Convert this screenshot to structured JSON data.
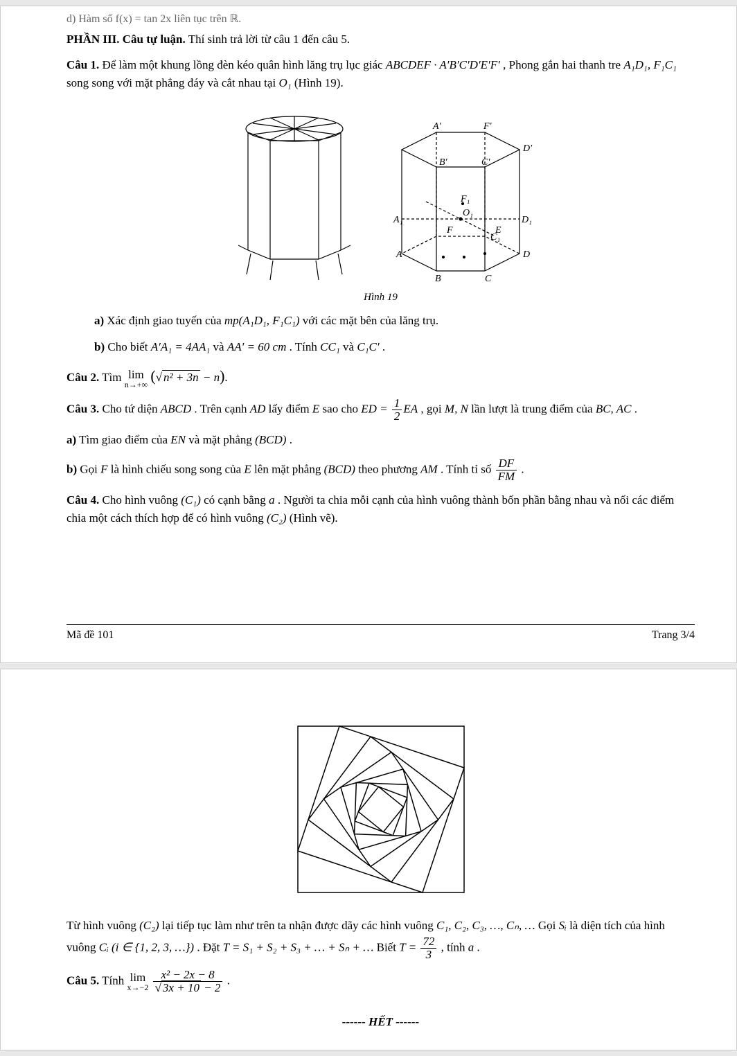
{
  "topCut": "d) Hàm số f(x) = tan 2x liên tục trên ℝ.",
  "sectionHead": {
    "bold": "PHẦN III. Câu tự luận.",
    "rest": " Thí sinh trả lời từ câu 1 đến câu 5."
  },
  "cau1": {
    "label": "Câu 1.",
    "text1": " Để làm một khung lồng đèn kéo quân hình lăng trụ lục giác ",
    "math1": "ABCDEF · A′B′C′D′E′F′",
    "text2": " , Phong gắn hai thanh tre ",
    "math2": "A₁D₁, F₁C₁",
    "text3": " song song với mặt phẳng đáy và cắt nhau tại ",
    "math3": "O₁",
    "text4": " (Hình 19).",
    "figCaption": "Hình 19",
    "a": {
      "label": "a)",
      "text1": " Xác định giao tuyến của ",
      "math1": "mp(A₁D₁, F₁C₁)",
      "text2": " với các mặt bên của lăng trụ."
    },
    "b": {
      "label": "b)",
      "text1": " Cho biết ",
      "math1": "A′A₁ = 4AA₁",
      "text2": " và ",
      "math2": "AA′ = 60 cm",
      "text3": " . Tính ",
      "math3": "CC₁",
      "text4": " và ",
      "math4": "C₁C′",
      "text5": " ."
    }
  },
  "cau2": {
    "label": "Câu 2.",
    "text1": " Tìm ",
    "limTop": "lim",
    "limBot": "n→+∞",
    "sqrtInner": "n² + 3n",
    "after": " − n",
    "close": "."
  },
  "cau3": {
    "label": "Câu 3.",
    "text1": " Cho tứ diện ",
    "math1": "ABCD",
    "text2": " . Trên cạnh ",
    "math2": "AD",
    "text3": " lấy điểm ",
    "math3": "E",
    "text4": " sao cho ",
    "math4a": "ED = ",
    "fracNum1": "1",
    "fracDen1": "2",
    "math4b": "EA",
    "text5": " , gọi ",
    "math5": "M, N",
    "text6": " lần lượt là trung điểm của ",
    "math6": "BC, AC",
    "text7": " .",
    "a": {
      "label": "a)",
      "text": " Tìm giao điểm của ",
      "math1": "EN",
      "text2": " và mặt phẳng ",
      "math2": "(BCD)",
      "text3": " ."
    },
    "b": {
      "label": "b)",
      "text1": " Gọi ",
      "math1": "F",
      "text2": " là hình chiếu song song của ",
      "math2": "E",
      "text3": " lên mặt phẳng ",
      "math3": "(BCD)",
      "text4": " theo phương ",
      "math4": "AM",
      "text5": " . Tính tỉ số ",
      "fracNum": "DF",
      "fracDen": "FM",
      "text6": " ."
    }
  },
  "cau4": {
    "label": "Câu 4.",
    "text1": " Cho hình vuông ",
    "math1": "(C₁)",
    "text2": " có cạnh bằng ",
    "math2": "a",
    "text3": " . Người ta chia mỗi cạnh của hình vuông thành bốn phần bằng nhau và nối các điểm chia một cách thích hợp để có hình vuông ",
    "math3": "(C₂)",
    "text4": " (Hình vẽ)."
  },
  "footer1": {
    "left": "Mã đề 101",
    "right": "Trang 3/4"
  },
  "cau4cont": {
    "text1": "Từ hình vuông ",
    "math1": "(C₂)",
    "text2": " lại tiếp tục làm như trên ta nhận được dãy các hình vuông ",
    "math2": "C₁, C₂, C₃, …, Cₙ, …",
    "text3": " Gọi ",
    "math3": "Sᵢ",
    "text4": " là diện tích của hình vuông ",
    "math4": "Cᵢ (i ∈ {1, 2, 3, …})",
    "text5": " . Đặt ",
    "math5": "T = S₁ + S₂ + S₃ + … + Sₙ + …",
    "text6": " Biết ",
    "math6a": "T = ",
    "fracNum": "72",
    "fracDen": "3",
    "text7": " , tính ",
    "math7": "a",
    "text8": " ."
  },
  "cau5": {
    "label": "Câu 5.",
    "text1": " Tính ",
    "limTop": "lim",
    "limBot": "x→−2",
    "fracNum": "x² − 2x − 8",
    "fracDenSqrt": "3x + 10",
    "fracDenAfter": " − 2",
    "text2": " ."
  },
  "het": "------ HẾT ------",
  "figColors": {
    "stroke": "#000000",
    "dash": "3,3",
    "bg": "#ffffff"
  },
  "spiral": {
    "size": 260,
    "levels": 7,
    "ratio": 0.25,
    "stroke": "#000000"
  }
}
